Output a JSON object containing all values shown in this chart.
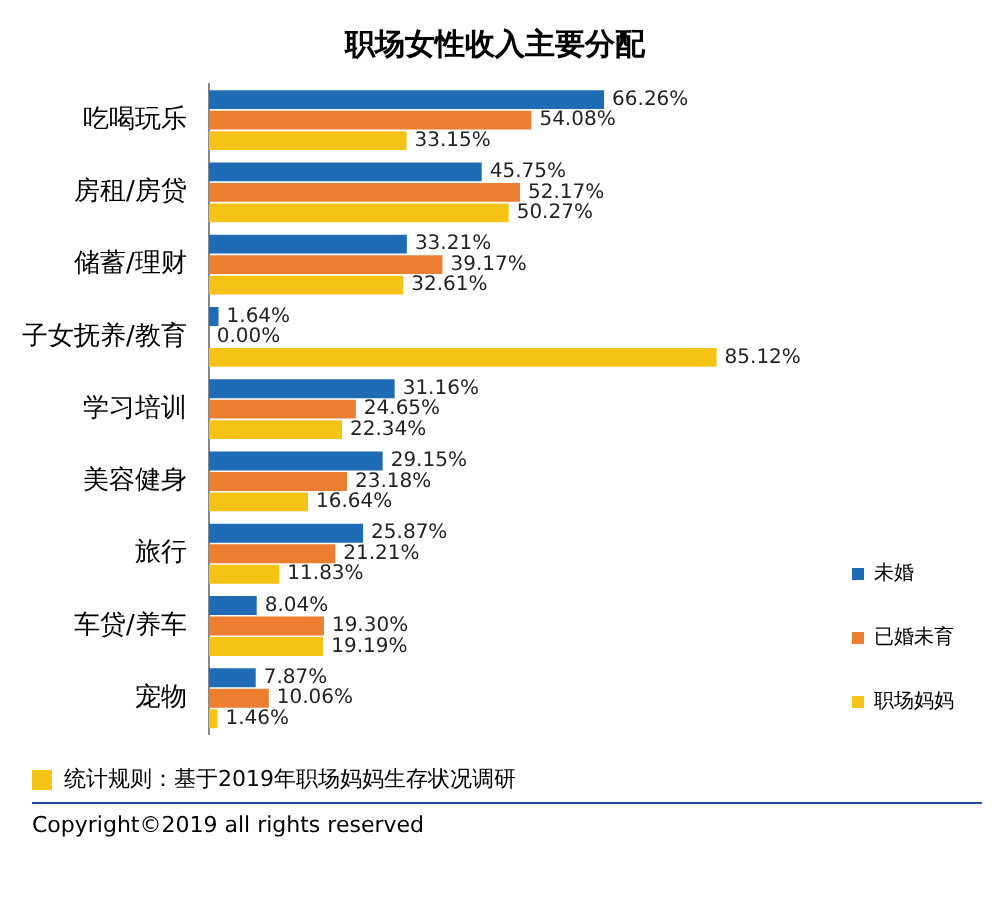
{
  "chart_data": {
    "type": "bar",
    "orientation": "horizontal",
    "title": "职场女性收入主要分配",
    "categories": [
      "吃喝玩乐",
      "房租/房贷",
      "储蓄/理财",
      "子女抚养/教育",
      "学习培训",
      "美容健身",
      "旅行",
      "车贷/养车",
      "宠物"
    ],
    "series": [
      {
        "name": "未婚",
        "color": "#1f6bb5",
        "values": [
          66.26,
          45.75,
          33.21,
          1.64,
          31.16,
          29.15,
          25.87,
          8.04,
          7.87
        ],
        "value_labels": [
          "66.26%",
          "45.75%",
          "33.21%",
          "1.64%",
          "31.16%",
          "29.15%",
          "25.87%",
          "8.04%",
          "7.87%"
        ]
      },
      {
        "name": "已婚未育",
        "color": "#ed7d31",
        "values": [
          54.08,
          52.17,
          39.17,
          0,
          24.65,
          23.18,
          21.21,
          19.3,
          10.06
        ],
        "value_labels": [
          "54.08%",
          "52.17%",
          "39.17%",
          "0.00%",
          "24.65%",
          "23.18%",
          "21.21%",
          "19.30%",
          "10.06%"
        ]
      },
      {
        "name": "职场妈妈",
        "color": "#f5c216",
        "values": [
          33.15,
          50.27,
          32.61,
          85.12,
          22.34,
          16.64,
          11.83,
          19.19,
          1.46
        ],
        "value_labels": [
          "33.15%",
          "50.27%",
          "32.61%",
          "85.12%",
          "22.34%",
          "16.64%",
          "11.83%",
          "19.19%",
          "1.46%"
        ]
      }
    ],
    "legend": "bottom right",
    "annotations": [
      "统计规则：基于2019年职场妈妈生存状况调研",
      "Copyright©2019 all rights reserved"
    ]
  }
}
